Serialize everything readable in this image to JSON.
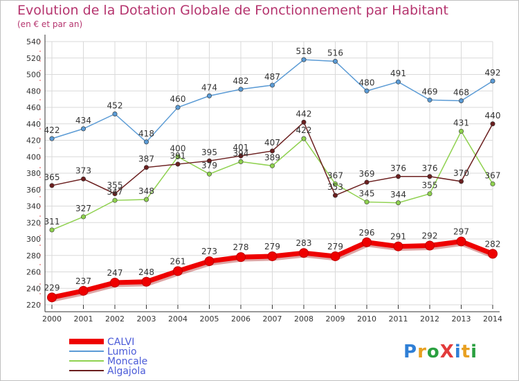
{
  "title": "Evolution de la Dotation Globale de Fonctionnement par Habitant",
  "subtitle": "(en € et par an)",
  "logo": "ProXiti",
  "chart_data": {
    "type": "line",
    "x": [
      "2000",
      "2001",
      "2002",
      "2003",
      "2004",
      "2005",
      "2006",
      "2007",
      "2008",
      "2009",
      "2010",
      "2011",
      "2012",
      "2013",
      "2014"
    ],
    "ylim": [
      220,
      540
    ],
    "yticks": [
      220,
      240,
      260,
      280,
      300,
      320,
      340,
      360,
      380,
      400,
      420,
      440,
      460,
      480,
      500,
      520,
      540
    ],
    "grid": true,
    "legend_position": "bottom-left",
    "series": [
      {
        "name": "CALVI",
        "color": "#ee0000",
        "values": [
          229,
          237,
          247,
          248,
          261,
          273,
          278,
          279,
          283,
          279,
          296,
          291,
          292,
          297,
          282
        ]
      },
      {
        "name": "Lumio",
        "color": "#5b9bd5",
        "values": [
          422,
          434,
          452,
          418,
          460,
          474,
          482,
          487,
          518,
          516,
          480,
          491,
          469,
          468,
          492
        ]
      },
      {
        "name": "Moncale",
        "color": "#8fd14f",
        "values": [
          311,
          327,
          347,
          348,
          400,
          379,
          394,
          389,
          422,
          367,
          345,
          344,
          355,
          431,
          367
        ]
      },
      {
        "name": "Algajola",
        "color": "#6b1f1f",
        "values": [
          365,
          373,
          355,
          387,
          391,
          395,
          401,
          407,
          442,
          353,
          369,
          376,
          376,
          370,
          440
        ]
      }
    ]
  }
}
